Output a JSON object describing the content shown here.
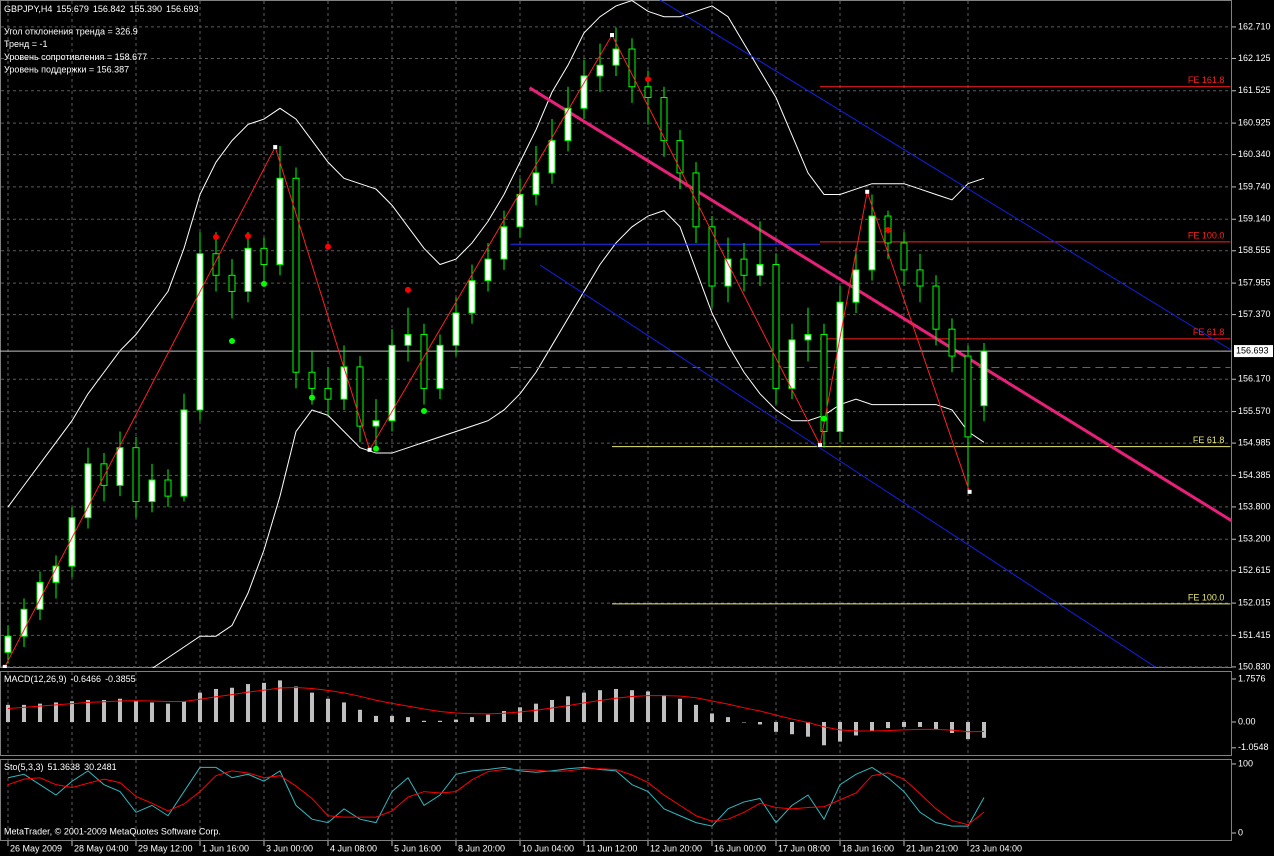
{
  "header": {
    "symbol": "GBPJPY,H4",
    "quote": [
      "155.679",
      "156.842",
      "155.390",
      "156.693"
    ],
    "info": [
      "Угол отклонения тренда = 326.9",
      "Тренд = -1",
      "Уровень сопротивления = 158.677",
      "Уровень поддержки = 156.387"
    ]
  },
  "footer": "MetaTrader, © 2001-2009 MetaQuotes Software Corp.",
  "chart_data": [
    {
      "type": "candlestick",
      "categories": [
        "26 May 2009",
        null,
        null,
        null,
        "28 May 04:00",
        null,
        null,
        null,
        "29 May 12:00",
        null,
        null,
        null,
        "1 Jun 16:00",
        null,
        null,
        null,
        "3 Jun 00:00",
        null,
        null,
        null,
        "4 Jun 08:00",
        null,
        null,
        null,
        "5 Jun 16:00",
        null,
        null,
        null,
        "8 Jun 20:00",
        null,
        null,
        null,
        "10 Jun 04:00",
        null,
        null,
        null,
        "11 Jun 12:00",
        null,
        null,
        null,
        "12 Jun 20:00",
        null,
        null,
        null,
        "16 Jun 00:00",
        null,
        null,
        null,
        "17 Jun 08:00",
        null,
        null,
        null,
        "18 Jun 16:00",
        null,
        null,
        null,
        "21 Jun 21:00",
        null,
        null,
        null,
        "23 Jun 04:00",
        null
      ],
      "open": [
        151.1,
        151.4,
        151.9,
        152.4,
        152.7,
        153.6,
        154.6,
        154.2,
        154.9,
        153.9,
        154.3,
        154.0,
        155.6,
        158.5,
        158.1,
        157.8,
        158.6,
        158.3,
        159.9,
        156.3,
        156.0,
        155.8,
        156.4,
        155.3,
        155.4,
        156.8,
        157.0,
        156.0,
        156.8,
        157.4,
        158.0,
        158.4,
        159.0,
        159.6,
        160.0,
        160.6,
        161.2,
        161.8,
        162.0,
        162.3,
        161.6,
        161.4,
        160.6,
        160.0,
        159.0,
        157.9,
        158.4,
        158.1,
        158.3,
        156.0,
        156.9,
        157.0,
        155.2,
        157.6,
        158.2,
        159.2,
        158.7,
        158.2,
        157.9,
        157.1,
        156.6,
        155.679
      ],
      "high": [
        151.6,
        152.1,
        152.6,
        152.9,
        153.8,
        154.9,
        154.8,
        155.2,
        155.1,
        154.6,
        154.5,
        155.9,
        158.9,
        158.9,
        158.4,
        158.9,
        158.8,
        160.5,
        160.1,
        156.7,
        156.4,
        156.8,
        156.6,
        155.8,
        157.1,
        157.5,
        157.2,
        157.0,
        157.7,
        158.3,
        158.7,
        159.3,
        159.9,
        160.5,
        161.0,
        161.6,
        162.1,
        162.4,
        162.7,
        162.5,
        161.9,
        161.6,
        160.8,
        160.2,
        159.2,
        158.8,
        158.7,
        159.1,
        158.5,
        157.2,
        157.5,
        157.2,
        157.9,
        158.6,
        159.6,
        159.3,
        158.9,
        158.5,
        158.1,
        157.3,
        156.8,
        156.842
      ],
      "low": [
        150.9,
        151.2,
        151.7,
        152.1,
        152.5,
        153.4,
        153.9,
        154.0,
        153.6,
        153.7,
        153.8,
        153.9,
        155.4,
        157.8,
        157.3,
        157.6,
        157.9,
        158.1,
        156.0,
        155.7,
        155.5,
        155.6,
        155.0,
        154.9,
        155.2,
        156.5,
        155.7,
        155.8,
        156.6,
        157.2,
        157.8,
        158.2,
        158.8,
        159.4,
        159.8,
        160.4,
        161.0,
        161.5,
        161.8,
        161.3,
        160.9,
        160.3,
        159.7,
        158.7,
        157.5,
        157.6,
        157.8,
        157.9,
        155.7,
        155.8,
        156.5,
        154.9,
        155.0,
        157.4,
        158.0,
        158.4,
        157.9,
        157.6,
        156.8,
        156.3,
        154.1,
        155.39
      ],
      "close": [
        151.4,
        151.9,
        152.4,
        152.7,
        153.6,
        154.6,
        154.2,
        154.9,
        153.9,
        154.3,
        154.0,
        155.6,
        158.5,
        158.1,
        157.8,
        158.6,
        158.3,
        159.9,
        156.3,
        156.0,
        155.8,
        156.4,
        155.3,
        155.4,
        156.8,
        157.0,
        156.0,
        156.8,
        157.4,
        158.0,
        158.4,
        159.0,
        159.6,
        160.0,
        160.6,
        161.2,
        161.8,
        162.0,
        162.3,
        161.6,
        161.4,
        160.6,
        160.0,
        159.0,
        157.9,
        158.4,
        158.1,
        158.3,
        156.0,
        156.9,
        157.0,
        155.2,
        157.6,
        158.2,
        159.2,
        158.7,
        158.2,
        157.9,
        157.1,
        156.6,
        155.1,
        156.693
      ],
      "colors": {
        "wick": "#00ff00",
        "up": "#ffffff",
        "down": "#000000"
      },
      "ylim": [
        150.81,
        163.21
      ],
      "yticks": [
        {
          "value": 162.71,
          "label": "162.710"
        },
        162.125,
        161.525,
        160.925,
        {
          "value": 160.34,
          "label": "160.340"
        },
        {
          "value": 159.74,
          "label": "159.740"
        },
        {
          "value": 159.14,
          "label": "159.140"
        },
        158.555,
        157.955,
        {
          "value": 157.37,
          "label": "157.370"
        },
        {
          "value": 156.17,
          "label": "156.170"
        },
        {
          "value": 155.57,
          "label": "155.570"
        },
        154.985,
        154.385,
        {
          "value": 153.8,
          "label": "153.800"
        },
        {
          "value": 153.2,
          "label": "153.200"
        },
        152.615,
        152.015,
        151.415,
        {
          "value": 150.83,
          "label": "150.830"
        }
      ],
      "grid": true,
      "current_price": {
        "value": 156.693,
        "label": "156.693",
        "color": "#c0c0c0"
      },
      "bands": {
        "color": "#ffffff",
        "upper": [
          153.8,
          154.2,
          154.6,
          155.0,
          155.4,
          155.9,
          156.3,
          156.7,
          157.0,
          157.4,
          157.8,
          158.6,
          159.6,
          160.2,
          160.6,
          160.9,
          161.0,
          161.2,
          161.0,
          160.6,
          160.2,
          159.9,
          159.8,
          159.7,
          159.4,
          159.0,
          158.6,
          158.3,
          158.4,
          158.7,
          159.1,
          159.6,
          160.2,
          160.8,
          161.5,
          162.0,
          162.6,
          162.9,
          163.1,
          163.2,
          163.0,
          162.9,
          162.9,
          163.0,
          163.1,
          162.9,
          162.4,
          161.9,
          161.4,
          160.7,
          160.0,
          159.6,
          159.6,
          159.7,
          159.8,
          159.8,
          159.8,
          159.7,
          159.6,
          159.5,
          159.8,
          159.9
        ],
        "lower": [
          149.5,
          149.6,
          149.7,
          149.8,
          149.9,
          150.0,
          150.2,
          150.4,
          150.6,
          150.8,
          151.0,
          151.2,
          151.4,
          151.4,
          151.6,
          152.2,
          153.0,
          154.0,
          155.2,
          155.6,
          155.5,
          155.2,
          154.9,
          154.8,
          154.8,
          154.9,
          155.0,
          155.1,
          155.2,
          155.3,
          155.4,
          155.6,
          155.9,
          156.3,
          156.8,
          157.3,
          157.8,
          158.3,
          158.7,
          159.0,
          159.2,
          159.3,
          159.0,
          158.2,
          157.4,
          156.8,
          156.3,
          155.9,
          155.6,
          155.4,
          155.4,
          155.5,
          155.7,
          155.8,
          155.7,
          155.7,
          155.7,
          155.7,
          155.7,
          155.6,
          155.2,
          155.0
        ]
      },
      "levels": [
        {
          "label": "FE 161.8",
          "price": 161.6,
          "from": 50.75,
          "to": 76.4,
          "color": "#ff2020"
        },
        {
          "label": "FE 100.0",
          "price": 158.72,
          "from": 50.75,
          "to": 76.4,
          "color": "#ff2020"
        },
        {
          "label": "FE 61.8",
          "price": 156.92,
          "from": 50.75,
          "to": 76.4,
          "color": "#ff2020"
        },
        {
          "label": "FE 61.8",
          "price": 154.92,
          "from": 37.75,
          "to": 76.4,
          "color": "#e8e870"
        },
        {
          "label": "FE 100.0",
          "price": 152.0,
          "from": 37.75,
          "to": 76.4,
          "color": "#e8e870"
        },
        {
          "price": 158.677,
          "from": 31.4,
          "to": 50.75,
          "color": "#2030ff"
        },
        {
          "price": 156.387,
          "from": 31.4,
          "to": 76.4,
          "color": "#ff2020",
          "dash": true
        }
      ],
      "trend_line": {
        "from": [
          32.6,
          161.58
        ],
        "to": [
          78.9,
          153.1
        ],
        "color": "#e8207a"
      },
      "channel": [
        {
          "from": [
            40.75,
            163.21
          ],
          "to": [
            76.4,
            156.72
          ],
          "color": "#1020e0"
        },
        {
          "from": [
            33.25,
            158.29
          ],
          "to": [
            71.7,
            150.83
          ],
          "color": "#1020e0"
        }
      ],
      "zigzag": {
        "color": "#ff2020",
        "points": [
          [
            -0.2,
            150.83
          ],
          [
            16.7,
            160.48
          ],
          [
            22.6,
            154.86
          ],
          [
            37.75,
            162.56
          ],
          [
            50.75,
            154.95
          ],
          [
            53.7,
            159.65
          ],
          [
            60.1,
            154.08
          ]
        ]
      },
      "fractals_up": {
        "color": "#ff0000",
        "points": [
          [
            13,
            158.81
          ],
          [
            15,
            158.83
          ],
          [
            20,
            158.63
          ],
          [
            25,
            157.83
          ],
          [
            40,
            161.74
          ],
          [
            55,
            158.94
          ]
        ]
      },
      "fractals_down": {
        "color": "#00ff00",
        "points": [
          [
            14,
            156.88
          ],
          [
            16,
            157.94
          ],
          [
            19,
            155.83
          ],
          [
            23,
            154.88
          ],
          [
            26,
            155.58
          ],
          [
            51,
            155.44
          ]
        ]
      }
    },
    {
      "type": "bar",
      "name": "MACD(12,26,9)",
      "color": "#c0c0c0",
      "values": [
        0.7,
        0.7,
        0.75,
        0.8,
        0.85,
        0.9,
        0.9,
        0.95,
        0.85,
        0.8,
        0.75,
        0.85,
        1.2,
        1.35,
        1.4,
        1.55,
        1.6,
        1.7,
        1.45,
        1.2,
        0.95,
        0.8,
        0.5,
        0.25,
        0.25,
        0.2,
        0.05,
        0.05,
        0.1,
        0.2,
        0.3,
        0.45,
        0.6,
        0.75,
        0.9,
        1.05,
        1.2,
        1.3,
        1.35,
        1.3,
        1.25,
        1.1,
        0.95,
        0.7,
        0.35,
        0.2,
        0.0,
        -0.1,
        -0.4,
        -0.5,
        -0.6,
        -0.95,
        -0.8,
        -0.55,
        -0.35,
        -0.25,
        -0.2,
        -0.2,
        -0.3,
        -0.45,
        -0.7,
        -0.6466
      ],
      "signal": {
        "color": "#ff0000",
        "values": [
          0.55,
          0.6,
          0.65,
          0.7,
          0.75,
          0.8,
          0.83,
          0.86,
          0.87,
          0.86,
          0.84,
          0.84,
          0.93,
          1.03,
          1.12,
          1.22,
          1.3,
          1.39,
          1.41,
          1.37,
          1.29,
          1.19,
          1.05,
          0.89,
          0.76,
          0.65,
          0.53,
          0.43,
          0.37,
          0.34,
          0.33,
          0.36,
          0.41,
          0.48,
          0.57,
          0.67,
          0.78,
          0.88,
          0.97,
          1.04,
          1.08,
          1.08,
          1.06,
          0.99,
          0.86,
          0.73,
          0.58,
          0.45,
          0.28,
          0.12,
          -0.02,
          -0.2,
          -0.32,
          -0.37,
          -0.37,
          -0.35,
          -0.32,
          -0.3,
          -0.3,
          -0.33,
          -0.4,
          -0.3855
        ]
      },
      "ylim": [
        -1.389,
        2.084
      ],
      "yticks": [
        1.7576,
        {
          "value": 0,
          "label": "0.00"
        },
        -1.0548
      ]
    },
    {
      "type": "line",
      "name": "Sto(5,3,3)",
      "series": [
        {
          "color": "#30b8c0",
          "values": [
            80,
            85,
            70,
            55,
            75,
            90,
            70,
            60,
            30,
            40,
            25,
            60,
            95,
            95,
            80,
            85,
            75,
            90,
            40,
            20,
            15,
            35,
            20,
            15,
            60,
            80,
            40,
            55,
            85,
            90,
            92,
            95,
            90,
            88,
            90,
            93,
            95,
            92,
            90,
            70,
            60,
            35,
            25,
            15,
            10,
            35,
            45,
            50,
            15,
            40,
            55,
            20,
            70,
            85,
            95,
            80,
            60,
            30,
            15,
            10,
            10,
            51.3638
          ]
        },
        {
          "color": "#ff0000",
          "values": [
            70,
            78,
            80,
            70,
            66,
            72,
            78,
            73,
            53,
            43,
            32,
            42,
            60,
            83,
            90,
            87,
            80,
            83,
            68,
            50,
            25,
            23,
            23,
            23,
            32,
            52,
            60,
            58,
            60,
            77,
            89,
            92,
            92,
            91,
            89,
            90,
            93,
            93,
            92,
            84,
            73,
            55,
            40,
            25,
            17,
            20,
            30,
            43,
            37,
            35,
            37,
            38,
            48,
            58,
            83,
            87,
            78,
            57,
            35,
            18,
            12,
            30.2481
          ]
        }
      ],
      "ylim": [
        -11.6,
        107.2
      ],
      "yticks": [
        100,
        0
      ]
    }
  ]
}
